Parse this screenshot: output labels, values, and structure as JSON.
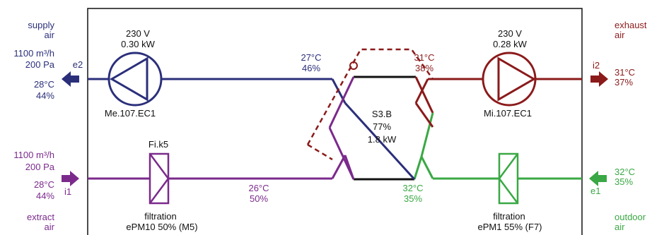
{
  "colors": {
    "supply": "#2b2f7a",
    "exhaust": "#8b1a1a",
    "extract": "#7b2a8c",
    "outdoor": "#3aa844",
    "frame": "#111111"
  },
  "left": {
    "supply": {
      "label1": "supply",
      "label2": "air",
      "flow": "1100 m³/h",
      "pressure": "200 Pa",
      "temp": "28°C",
      "humidity": "44%",
      "port": "e2"
    },
    "extract": {
      "label1": "extract",
      "label2": "air",
      "flow": "1100 m³/h",
      "pressure": "200 Pa",
      "temp": "28°C",
      "humidity": "44%",
      "port": "i1"
    }
  },
  "right": {
    "exhaust": {
      "label1": "exhaust",
      "label2": "air",
      "temp": "31°C",
      "humidity": "37%",
      "port": "i2"
    },
    "outdoor": {
      "label1": "outdoor",
      "label2": "air",
      "temp": "32°C",
      "humidity": "35%",
      "port": "e1"
    }
  },
  "fans": {
    "supply_fan": {
      "voltage": "230 V",
      "power": "0.30 kW",
      "model": "Me.107.EC1"
    },
    "exhaust_fan": {
      "voltage": "230 V",
      "power": "0.28 kW",
      "model": "Mi.107.EC1"
    }
  },
  "exchanger": {
    "model": "S3.B",
    "efficiency": "77%",
    "power": "1.8 kW"
  },
  "points": {
    "supply_in": {
      "temp": "27°C",
      "humidity": "46%"
    },
    "exhaust_in": {
      "temp": "31°C",
      "humidity": "38%"
    },
    "extract_out": {
      "temp": "26°C",
      "humidity": "50%"
    },
    "outdoor_out": {
      "temp": "32°C",
      "humidity": "35%"
    }
  },
  "filters": {
    "extract_filter": {
      "name": "Fi.k5",
      "label": "filtration",
      "class": "ePM10 50% (M5)"
    },
    "outdoor_filter": {
      "label": "filtration",
      "class": "ePM1 55% (F7)"
    }
  }
}
